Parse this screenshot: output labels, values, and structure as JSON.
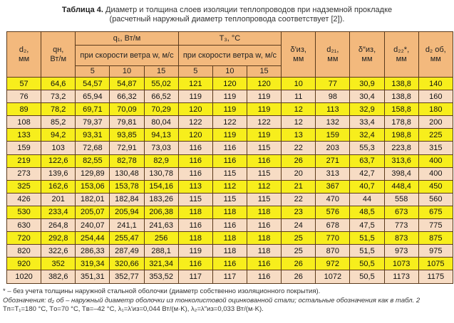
{
  "title": {
    "label": "Таблица 4.",
    "text": "Диаметр и толщина слоев изоляции теплопроводов при надземной прокладке",
    "text2": "(расчетный наружный диаметр теплопровода соответствует [2])."
  },
  "colors": {
    "header": "#f3b97d",
    "row_yellow": "#f7ee1c",
    "row_beige": "#f7dcc4",
    "border": "#5b3a1c"
  },
  "header": {
    "d2": "d₂,\nмм",
    "qn": "qн,\nВт/м",
    "q1": "q₁, Вт/м",
    "t3": "T₃, °C",
    "wind": "при скорости ветра w, м/с",
    "speeds": [
      "5",
      "10",
      "15"
    ],
    "delta1": "δ′из,\nмм",
    "d21": "d₂₁,\nмм",
    "delta2": "δ″из,\nмм",
    "d22": "d₂₂*,\nмм",
    "d2ob": "d₂ об,\nмм"
  },
  "rows": [
    [
      "57",
      "64,6",
      "54,57",
      "54,87",
      "55,02",
      "121",
      "120",
      "120",
      "10",
      "77",
      "30,9",
      "138,8",
      "140"
    ],
    [
      "76",
      "73,2",
      "65,94",
      "66,32",
      "66,52",
      "119",
      "119",
      "119",
      "11",
      "98",
      "30,4",
      "138,8",
      "160"
    ],
    [
      "89",
      "78,2",
      "69,71",
      "70,09",
      "70,29",
      "120",
      "119",
      "119",
      "12",
      "113",
      "32,9",
      "158,8",
      "180"
    ],
    [
      "108",
      "85,2",
      "79,37",
      "79,81",
      "80,04",
      "122",
      "122",
      "122",
      "12",
      "132",
      "33,4",
      "178,8",
      "200"
    ],
    [
      "133",
      "94,2",
      "93,31",
      "93,85",
      "94,13",
      "120",
      "119",
      "119",
      "13",
      "159",
      "32,4",
      "198,8",
      "225"
    ],
    [
      "159",
      "103",
      "72,68",
      "72,91",
      "73,03",
      "116",
      "116",
      "115",
      "22",
      "203",
      "55,3",
      "223,8",
      "315"
    ],
    [
      "219",
      "122,6",
      "82,55",
      "82,78",
      "82,9",
      "116",
      "116",
      "116",
      "26",
      "271",
      "63,7",
      "313,6",
      "400"
    ],
    [
      "273",
      "139,6",
      "129,89",
      "130,48",
      "130,78",
      "116",
      "115",
      "115",
      "20",
      "313",
      "42,7",
      "398,4",
      "400"
    ],
    [
      "325",
      "162,6",
      "153,06",
      "153,78",
      "154,16",
      "113",
      "112",
      "112",
      "21",
      "367",
      "40,7",
      "448,4",
      "450"
    ],
    [
      "426",
      "201",
      "182,01",
      "182,84",
      "183,26",
      "115",
      "115",
      "115",
      "22",
      "470",
      "44",
      "558",
      "560"
    ],
    [
      "530",
      "233,4",
      "205,07",
      "205,94",
      "206,38",
      "118",
      "118",
      "118",
      "23",
      "576",
      "48,5",
      "673",
      "675"
    ],
    [
      "630",
      "264,8",
      "240,07",
      "241,1",
      "241,63",
      "116",
      "116",
      "116",
      "24",
      "678",
      "47,5",
      "773",
      "775"
    ],
    [
      "720",
      "292,8",
      "254,44",
      "255,47",
      "256",
      "118",
      "118",
      "118",
      "25",
      "770",
      "51,5",
      "873",
      "875"
    ],
    [
      "820",
      "322,6",
      "286,33",
      "287,49",
      "288,1",
      "119",
      "118",
      "118",
      "25",
      "870",
      "51,5",
      "973",
      "975"
    ],
    [
      "920",
      "352",
      "319,34",
      "320,66",
      "321,34",
      "116",
      "116",
      "116",
      "26",
      "972",
      "50,5",
      "1073",
      "1075"
    ],
    [
      "1020",
      "382,6",
      "351,31",
      "352,77",
      "353,52",
      "117",
      "117",
      "116",
      "26",
      "1072",
      "50,5",
      "1173",
      "1175"
    ]
  ],
  "notes": {
    "n1": "* – без учета толщины наружной стальной оболочки (диаметр собственно изоляционного покрытия).",
    "n2": "Обозначения: d₂ об – наружный диаметр оболочки из тонколистовой оцинкованной стали; остальные обозначения как в табл. 2",
    "n3": "Tп=T₁=180 °C, Tо=70 °C, Tв=–42 °C, λ₁=λ′из=0,044 Вт/(м·K), λ₂=λ″из=0,033 Вт/(м·K)."
  }
}
